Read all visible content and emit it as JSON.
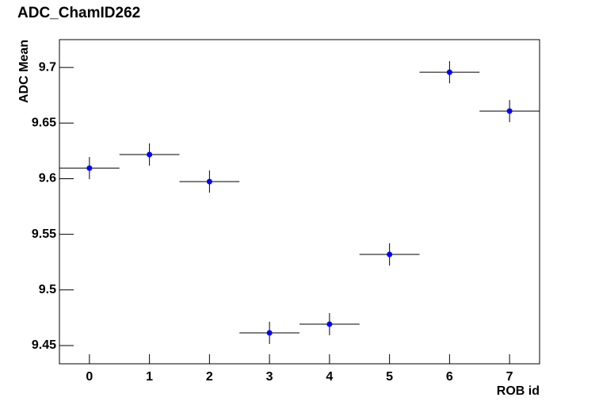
{
  "chart_data": {
    "type": "scatter",
    "title": "ADC_ChamID262",
    "x_label": "ROB id",
    "y_label": "ADC Mean",
    "x": [
      0,
      1,
      2,
      3,
      4,
      5,
      6,
      7
    ],
    "series": [
      {
        "name": "ADC Mean",
        "color": "#0000ff",
        "values": [
          9.6095,
          9.6217,
          9.5974,
          9.4614,
          9.4692,
          9.5319,
          9.6957,
          9.6608
        ],
        "yerr": [
          0.01,
          0.01,
          0.01,
          0.01,
          0.01,
          0.01,
          0.01,
          0.01
        ],
        "xerr": [
          0.5,
          0.5,
          0.5,
          0.5,
          0.5,
          0.5,
          0.5,
          0.5
        ]
      }
    ],
    "xlim": [
      -0.5,
      7.5
    ],
    "ylim": [
      9.4336,
      9.725
    ],
    "xticks": [
      0,
      1,
      2,
      3,
      4,
      5,
      6,
      7
    ],
    "yticks": [
      9.45,
      9.5,
      9.55,
      9.6,
      9.65,
      9.7
    ],
    "grid": false
  }
}
